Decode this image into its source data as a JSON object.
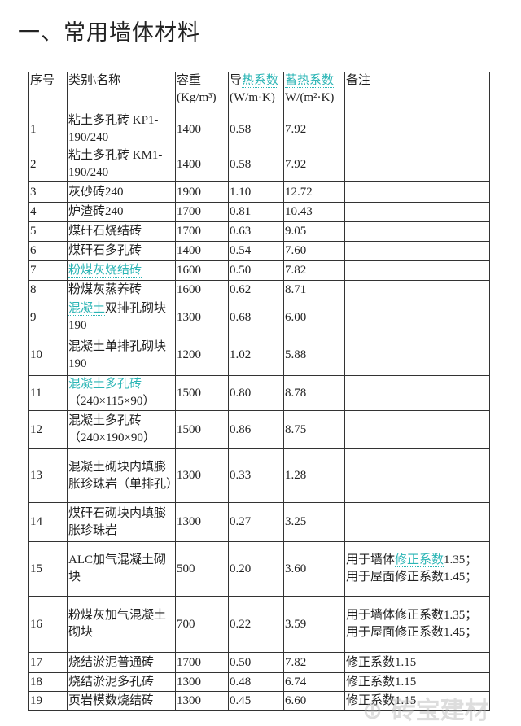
{
  "title": "一、常用墙体材料",
  "header": [
    [
      {
        "t": "序号"
      }
    ],
    [
      {
        "t": "类别\\名称"
      }
    ],
    [
      {
        "t": "容重"
      },
      {
        "br": true
      },
      {
        "t": "(Kg/m³)"
      }
    ],
    [
      {
        "t": "导"
      },
      {
        "t": "热系数",
        "link": true
      },
      {
        "br": true
      },
      {
        "t": "(W/m·K)"
      }
    ],
    [
      {
        "t": "蓄热系数",
        "link": true
      },
      {
        "br": true
      },
      {
        "t": "W/(m²·K)"
      }
    ],
    [
      {
        "t": "备注"
      }
    ]
  ],
  "rows": [
    {
      "no": "1",
      "name": [
        {
          "t": "粘土多孔砖 KP1-190/240"
        }
      ],
      "density": "1400",
      "conductivity": "0.58",
      "storage": "7.92",
      "note": []
    },
    {
      "no": "2",
      "name": [
        {
          "t": "粘土多孔砖 KM1-190/240"
        }
      ],
      "density": "1400",
      "conductivity": "0.58",
      "storage": "7.92",
      "note": []
    },
    {
      "no": "3",
      "name": [
        {
          "t": "灰砂砖240"
        }
      ],
      "density": "1900",
      "conductivity": "1.10",
      "storage": "12.72",
      "note": []
    },
    {
      "no": "4",
      "name": [
        {
          "t": "炉渣砖240"
        }
      ],
      "density": "1700",
      "conductivity": "0.81",
      "storage": "10.43",
      "note": []
    },
    {
      "no": "5",
      "name": [
        {
          "t": "煤矸石烧结砖"
        }
      ],
      "density": "1700",
      "conductivity": "0.63",
      "storage": "9.05",
      "note": []
    },
    {
      "no": "6",
      "name": [
        {
          "t": "煤矸石多孔砖"
        }
      ],
      "density": "1400",
      "conductivity": "0.54",
      "storage": "7.60",
      "note": []
    },
    {
      "no": "7",
      "name": [
        {
          "t": "粉煤灰烧结砖",
          "link": true
        }
      ],
      "density": "1600",
      "conductivity": "0.50",
      "storage": "7.82",
      "note": []
    },
    {
      "no": "8",
      "name": [
        {
          "t": "粉煤灰蒸养砖"
        }
      ],
      "density": "1600",
      "conductivity": "0.62",
      "storage": "8.71",
      "note": []
    },
    {
      "no": "9",
      "name": [
        {
          "t": "混凝土",
          "link": true
        },
        {
          "t": "双排孔砌块190"
        }
      ],
      "density": "1300",
      "conductivity": "0.68",
      "storage": "6.00",
      "note": []
    },
    {
      "no": "10",
      "name": [
        {
          "t": "混凝土单排孔砌块190"
        }
      ],
      "density": "1200",
      "conductivity": "1.02",
      "storage": "5.88",
      "note": []
    },
    {
      "no": "11",
      "name": [
        {
          "t": "混凝土多孔砖",
          "link": true
        },
        {
          "br": true
        },
        {
          "t": "（240×115×90）"
        }
      ],
      "density": "1500",
      "conductivity": "0.80",
      "storage": "8.78",
      "note": []
    },
    {
      "no": "12",
      "name": [
        {
          "t": "混凝土多孔砖"
        },
        {
          "br": true
        },
        {
          "t": "（240×190×90）"
        }
      ],
      "density": "1500",
      "conductivity": "0.86",
      "storage": "8.75",
      "note": []
    },
    {
      "no": "13",
      "name": [
        {
          "t": "混凝土砌块内填膨胀珍珠岩（单排孔）"
        }
      ],
      "density": "1300",
      "conductivity": "0.33",
      "storage": "1.28",
      "note": []
    },
    {
      "no": "14",
      "name": [
        {
          "t": "煤矸石砌块内填膨胀珍珠岩"
        }
      ],
      "density": "1300",
      "conductivity": "0.27",
      "storage": "3.25",
      "note": []
    },
    {
      "no": "15",
      "name": [
        {
          "t": "ALC加气混凝土砌块"
        }
      ],
      "density": "500",
      "conductivity": "0.20",
      "storage": "3.60",
      "note": [
        {
          "t": "用于墙体"
        },
        {
          "t": "修正系数",
          "link": true
        },
        {
          "t": "1.35；用于屋面修正系数1.45；"
        }
      ]
    },
    {
      "no": "16",
      "name": [
        {
          "t": "粉煤灰加气混凝土砌块"
        }
      ],
      "density": "700",
      "conductivity": "0.22",
      "storage": "3.59",
      "note": [
        {
          "t": "用于墙体修正系数1.35；用于屋面修正系数1.45；"
        }
      ]
    },
    {
      "no": "17",
      "name": [
        {
          "t": "烧结淤泥普通砖"
        }
      ],
      "density": "1700",
      "conductivity": "0.50",
      "storage": "7.82",
      "note": [
        {
          "t": "修正系数1.15"
        }
      ]
    },
    {
      "no": "18",
      "name": [
        {
          "t": "烧结淤泥多孔砖"
        }
      ],
      "density": "1300",
      "conductivity": "0.48",
      "storage": "6.74",
      "note": [
        {
          "t": "修正系数1.15"
        }
      ]
    },
    {
      "no": "19",
      "name": [
        {
          "t": "页岩模数烧结砖"
        }
      ],
      "density": "1300",
      "conductivity": "0.45",
      "storage": "6.60",
      "note": [
        {
          "t": "修正系数1.15"
        }
      ]
    }
  ],
  "watermark": "宝建材",
  "colors": {
    "link": "#2bb5b5",
    "border": "#333333"
  }
}
